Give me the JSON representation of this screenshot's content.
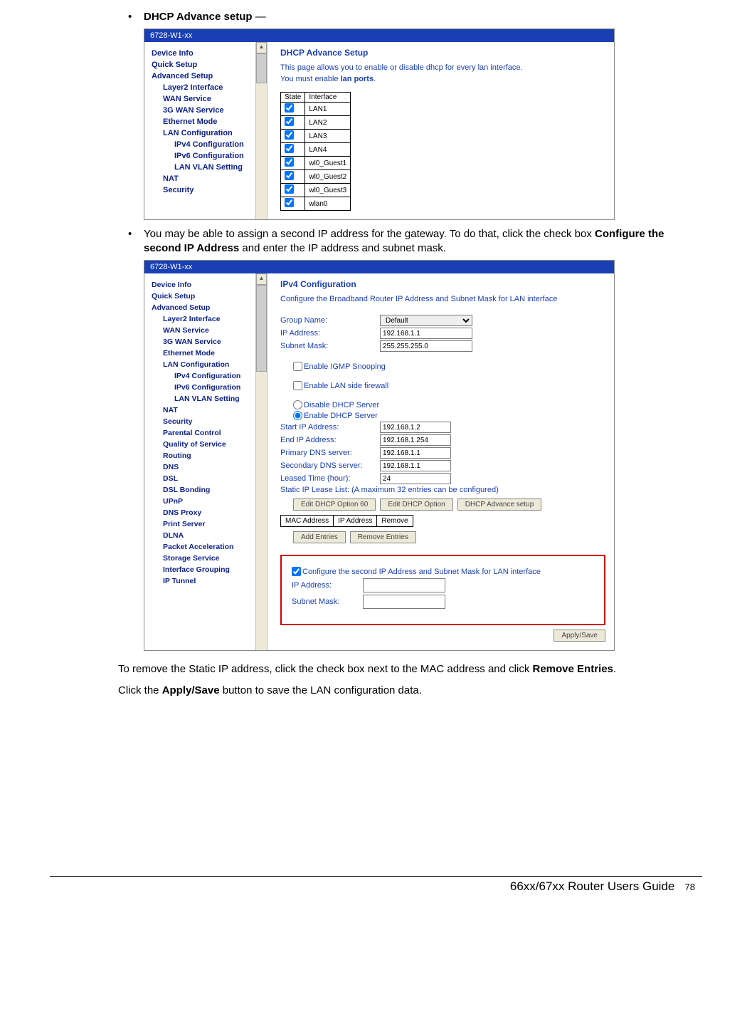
{
  "bullets": {
    "b1_bold": "DHCP Advance setup",
    "b1_tail": " —",
    "b2": "You may be able to assign a second IP address for the gateway.  To do that, click the check box ",
    "b2_bold": "Configure the second IP Address",
    "b2_tail": " and enter the IP address and subnet mask."
  },
  "screenshot1": {
    "title": "6728-W1-xx",
    "nav": [
      "Device Info",
      "Quick Setup",
      "Advanced Setup",
      "Layer2 Interface",
      "WAN Service",
      "3G WAN Service",
      "Ethernet Mode",
      "LAN Configuration",
      "IPv4 Configuration",
      "IPv6 Configuration",
      "LAN VLAN Setting",
      "NAT",
      "Security"
    ],
    "nav_levels": [
      0,
      0,
      0,
      1,
      1,
      1,
      1,
      1,
      2,
      2,
      2,
      1,
      1
    ],
    "heading": "DHCP Advance Setup",
    "desc1": "This page allows you to enable or disable dhcp for every lan interface.",
    "desc2_a": "You must enable ",
    "desc2_b": "lan ports",
    "desc2_c": ".",
    "table": {
      "cols": [
        "State",
        "Interface"
      ],
      "rows": [
        "LAN1",
        "LAN2",
        "LAN3",
        "LAN4",
        "wl0_Guest1",
        "wl0_Guest2",
        "wl0_Guest3",
        "wlan0"
      ]
    }
  },
  "screenshot2": {
    "title": "6728-W1-xx",
    "nav": [
      "Device Info",
      "Quick Setup",
      "Advanced Setup",
      "Layer2 Interface",
      "WAN Service",
      "3G WAN Service",
      "Ethernet Mode",
      "LAN Configuration",
      "IPv4 Configuration",
      "IPv6 Configuration",
      "LAN VLAN Setting",
      "NAT",
      "Security",
      "Parental Control",
      "Quality of Service",
      "Routing",
      "DNS",
      "DSL",
      "DSL Bonding",
      "UPnP",
      "DNS Proxy",
      "Print Server",
      "DLNA",
      "Packet Acceleration",
      "Storage Service",
      "Interface Grouping",
      "IP Tunnel"
    ],
    "nav_levels": [
      0,
      0,
      0,
      1,
      1,
      1,
      1,
      1,
      2,
      2,
      2,
      1,
      1,
      1,
      1,
      1,
      1,
      1,
      1,
      1,
      1,
      1,
      1,
      1,
      1,
      1,
      1
    ],
    "heading": "IPv4 Configuration",
    "desc": "Configure the Broadband Router IP Address and Subnet Mask for LAN interface",
    "fields": {
      "group_name_lbl": "Group Name:",
      "group_name_val": "Default",
      "ip_lbl": "IP Address:",
      "ip_val": "192.168.1.1",
      "mask_lbl": "Subnet Mask:",
      "mask_val": "255.255.255.0",
      "igmp": "Enable IGMP Snooping",
      "lanfw": "Enable LAN side firewall",
      "dhcp_off": "Disable DHCP Server",
      "dhcp_on": "Enable DHCP Server",
      "start_lbl": "Start IP Address:",
      "start_val": "192.168.1.2",
      "end_lbl": "End IP Address:",
      "end_val": "192.168.1.254",
      "pdns_lbl": "Primary DNS server:",
      "pdns_val": "192.168.1.1",
      "sdns_lbl": "Secondary DNS server:",
      "sdns_val": "192.168.1.1",
      "lease_lbl": "Leased Time (hour):",
      "lease_val": "24",
      "static_lbl": "Static IP Lease List: (A maximum 32 entries can be configured)",
      "btn1": "Edit DHCP Option 60",
      "btn2": "Edit DHCP Option",
      "btn3": "DHCP Advance setup",
      "mac_cols": [
        "MAC Address",
        "IP Address",
        "Remove"
      ],
      "btn_add": "Add Entries",
      "btn_rem": "Remove Entries",
      "second_ip": "Configure the second IP Address and Subnet Mask for LAN interface",
      "ip2_lbl": "IP Address:",
      "mask2_lbl": "Subnet Mask:",
      "apply": "Apply/Save"
    }
  },
  "para1_a": "To remove the Static IP address, click the check box next to the MAC address and click ",
  "para1_b": "Remove Entries",
  "para1_c": ".",
  "para2_a": "Click the ",
  "para2_b": "Apply/Save",
  "para2_c": " button to save the LAN configuration data.",
  "footer_title": "66xx/67xx Router Users Guide",
  "footer_page": "78"
}
